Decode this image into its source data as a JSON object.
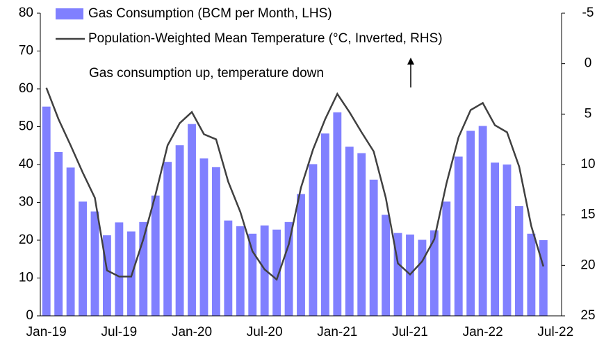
{
  "chart_data": {
    "type": "bar-line",
    "categories": [
      "Jan-19",
      null,
      null,
      null,
      null,
      null,
      "Jul-19",
      null,
      null,
      null,
      null,
      null,
      "Jan-20",
      null,
      null,
      null,
      null,
      null,
      "Jul-20",
      null,
      null,
      null,
      null,
      null,
      "Jan-21",
      null,
      null,
      null,
      null,
      null,
      "Jul-21",
      null,
      null,
      null,
      null,
      null,
      "Jan-22",
      null,
      null,
      null,
      null,
      null,
      "Jul-22"
    ],
    "series": [
      {
        "name": "Gas Consumption (BCM per Month, LHS)",
        "color": "#8080ff",
        "type": "bar",
        "values": [
          55.3,
          43.3,
          39.2,
          30.2,
          27.6,
          21.3,
          24.7,
          22.3,
          24.8,
          31.8,
          40.7,
          45.1,
          50.7,
          41.6,
          39.3,
          25.2,
          23.7,
          21.7,
          23.9,
          22.8,
          24.8,
          32.2,
          40.1,
          48.2,
          53.8,
          44.7,
          43.0,
          36.0,
          26.7,
          21.9,
          21.5,
          20.1,
          22.6,
          30.2,
          42.1,
          48.9,
          50.2,
          40.5,
          40.0,
          29.0,
          21.7,
          20.0,
          null
        ]
      },
      {
        "name": "Population-Weighted Mean Temperature (°C, Inverted, RHS)",
        "color": "#404040",
        "type": "line",
        "axis": "y2",
        "values": [
          2.4,
          5.5,
          8.1,
          10.8,
          13.3,
          20.5,
          21.1,
          21.1,
          17.4,
          13.0,
          8.1,
          5.9,
          4.8,
          7.0,
          7.5,
          11.7,
          14.7,
          18.6,
          20.4,
          21.4,
          17.9,
          12.3,
          8.5,
          5.5,
          3.0,
          4.8,
          6.8,
          8.7,
          13.3,
          19.8,
          20.9,
          19.6,
          17.4,
          11.9,
          7.3,
          4.6,
          3.9,
          6.1,
          6.8,
          10.2,
          16.1,
          20.1,
          null
        ]
      }
    ],
    "ylim": [
      0,
      80
    ],
    "yticks": [
      0,
      10,
      20,
      30,
      40,
      50,
      60,
      70,
      80
    ],
    "y2lim": [
      -5,
      25
    ],
    "y2ticks": [
      -5,
      0,
      5,
      10,
      15,
      20,
      25
    ],
    "y2_inverted": true,
    "annotation": "Gas consumption up, temperature down"
  }
}
